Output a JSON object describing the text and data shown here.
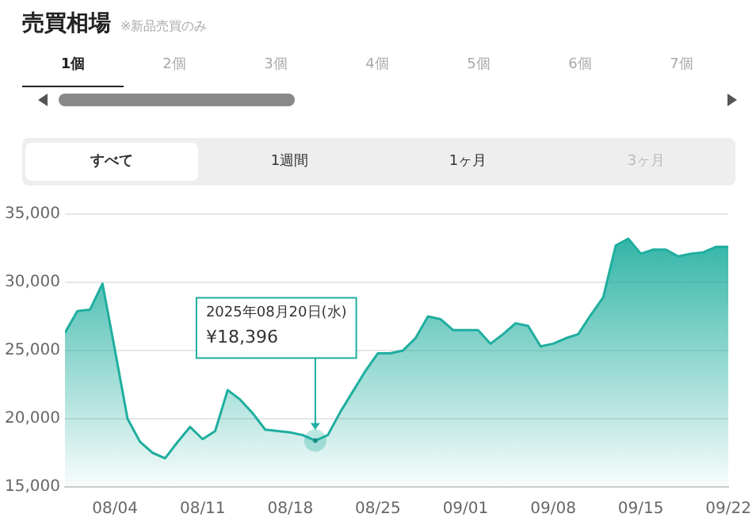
{
  "chart_data": {
    "type": "area",
    "title": "売買相場",
    "subtitle": "※新品売買のみ",
    "x": [
      "--07-31",
      "--08-01",
      "--08-02",
      "--08-03",
      "--08-04",
      "--08-05",
      "--08-06",
      "--08-07",
      "--08-08",
      "--08-09",
      "--08-10",
      "--08-11",
      "--08-12",
      "--08-13",
      "--08-14",
      "--08-15",
      "--08-16",
      "--08-17",
      "--08-18",
      "--08-19",
      "--08-20",
      "--08-21",
      "--08-22",
      "--08-23",
      "--08-24",
      "--08-25",
      "--08-26",
      "--08-27",
      "--08-28",
      "--08-29",
      "--08-30",
      "--08-31",
      "--09-01",
      "--09-02",
      "--09-03",
      "--09-04",
      "--09-05",
      "--09-06",
      "--09-07",
      "--09-08",
      "--09-09",
      "--09-10",
      "--09-11",
      "--09-12",
      "--09-13",
      "--09-14",
      "--09-15",
      "--09-16",
      "--09-17",
      "--09-18",
      "--09-19",
      "--09-20",
      "--09-21",
      "--09-22"
    ],
    "series": [
      {
        "color": "#1fae9f",
        "values": [
          26300,
          27900,
          28000,
          29900,
          25000,
          20000,
          18300,
          17500,
          17100,
          18300,
          19400,
          18500,
          19100,
          22100,
          21400,
          20400,
          19200,
          19100,
          19000,
          18800,
          18396,
          18800,
          20500,
          22000,
          23500,
          24800,
          24800,
          25000,
          25900,
          27500,
          27300,
          26500,
          26500,
          26500,
          25500,
          26200,
          27000,
          26800,
          25300,
          25500,
          25900,
          26200,
          27600,
          28900,
          32700,
          33200,
          32100,
          32400,
          32400,
          31900,
          32100,
          32200,
          32600,
          32600
        ]
      }
    ],
    "xlim": [
      "--07-31",
      "--09-22"
    ],
    "xticks": [
      {
        "value": "--08-04",
        "label": "08/04"
      },
      {
        "value": "--08-11",
        "label": "08/11"
      },
      {
        "value": "--08-18",
        "label": "08/18"
      },
      {
        "value": "--08-25",
        "label": "08/25"
      },
      {
        "value": "--09-01",
        "label": "09/01"
      },
      {
        "value": "--09-08",
        "label": "09/08"
      },
      {
        "value": "--09-15",
        "label": "09/15"
      },
      {
        "value": "--09-22",
        "label": "09/22"
      }
    ],
    "ylim": [
      15000,
      35000
    ],
    "yticks": [
      {
        "value": 15000,
        "label": "15,000"
      },
      {
        "value": 20000,
        "label": "20,000"
      },
      {
        "value": 25000,
        "label": "25,000"
      },
      {
        "value": 30000,
        "label": "30,000"
      },
      {
        "value": 35000,
        "label": "35,000"
      }
    ],
    "grid": "y",
    "legend": false,
    "marker": "none",
    "line_style": "solid",
    "annotations": [
      "1個",
      "2個",
      "3個",
      "4個",
      "5個",
      "6個",
      "7個",
      "すべて",
      "1週間",
      "1ヶ月",
      "3ヶ月",
      {
        "text": "2025年08月20日(水)\n¥18,396",
        "x": "--08-20",
        "y": 18396
      }
    ]
  }
}
